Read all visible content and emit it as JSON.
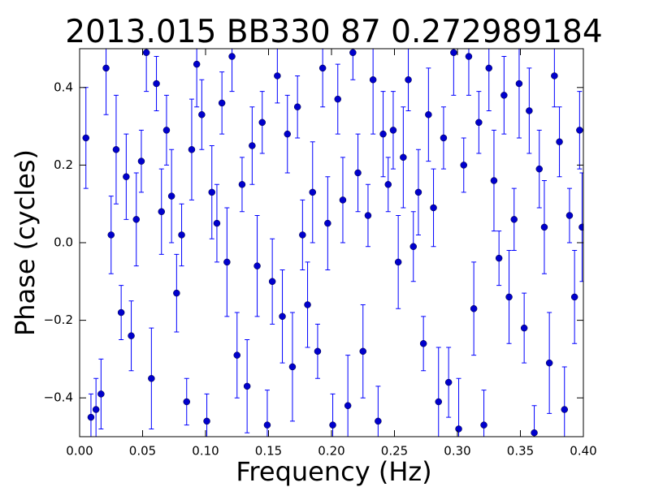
{
  "chart_data": {
    "type": "errorbar-scatter",
    "title": "2013.015  BB330   87   0.272989184",
    "xlabel": "Frequency (Hz)",
    "ylabel": "Phase (cycles)",
    "xlim": [
      0,
      0.4
    ],
    "ylim": [
      -0.5,
      0.5
    ],
    "xticks": [
      {
        "value": 0,
        "label": "0.00"
      },
      {
        "value": 0.05,
        "label": "0.05"
      },
      {
        "value": 0.1,
        "label": "0.10"
      },
      {
        "value": 0.15,
        "label": "0.15"
      },
      {
        "value": 0.2,
        "label": "0.20"
      },
      {
        "value": 0.25,
        "label": "0.25"
      },
      {
        "value": 0.3,
        "label": "0.30"
      },
      {
        "value": 0.35,
        "label": "0.35"
      },
      {
        "value": 0.4,
        "label": "0.40"
      }
    ],
    "yticks": [
      {
        "value": -0.4,
        "label": "−0.4"
      },
      {
        "value": -0.2,
        "label": "−0.2"
      },
      {
        "value": 0,
        "label": "0.0"
      },
      0.2,
      0.4
    ],
    "series": [
      {
        "color": "#0000cc",
        "error_color": "#0000ff",
        "x": [
          0.005,
          0.009,
          0.013,
          0.017,
          0.021,
          0.025,
          0.029,
          0.033,
          0.037,
          0.041,
          0.045,
          0.049,
          0.053,
          0.057,
          0.061,
          0.065,
          0.069,
          0.073,
          0.077,
          0.081,
          0.085,
          0.089,
          0.093,
          0.097,
          0.101,
          0.105,
          0.109,
          0.113,
          0.117,
          0.121,
          0.125,
          0.129,
          0.133,
          0.137,
          0.141,
          0.145,
          0.149,
          0.153,
          0.157,
          0.161,
          0.165,
          0.169,
          0.173,
          0.177,
          0.181,
          0.185,
          0.189,
          0.193,
          0.197,
          0.201,
          0.205,
          0.209,
          0.213,
          0.217,
          0.221,
          0.225,
          0.229,
          0.233,
          0.237,
          0.241,
          0.245,
          0.249,
          0.253,
          0.257,
          0.261,
          0.265,
          0.269,
          0.273,
          0.277,
          0.281,
          0.285,
          0.289,
          0.293,
          0.297,
          0.301,
          0.305,
          0.309,
          0.313,
          0.317,
          0.321,
          0.325,
          0.329,
          0.333,
          0.337,
          0.341,
          0.345,
          0.349,
          0.353,
          0.357,
          0.361,
          0.365,
          0.369,
          0.373,
          0.377,
          0.381,
          0.385,
          0.389,
          0.393,
          0.397,
          0.399
        ],
        "values": [
          0.27,
          -0.45,
          -0.43,
          -0.39,
          0.45,
          0.02,
          0.24,
          -0.18,
          0.17,
          -0.24,
          0.06,
          0.21,
          0.49,
          -0.35,
          0.41,
          0.08,
          0.29,
          0.12,
          -0.13,
          0.02,
          -0.41,
          0.24,
          0.46,
          0.33,
          -0.46,
          0.13,
          0.05,
          0.36,
          -0.05,
          0.48,
          -0.29,
          0.15,
          -0.37,
          0.25,
          -0.06,
          0.31,
          -0.47,
          -0.1,
          0.43,
          -0.19,
          0.28,
          -0.32,
          0.35,
          0.02,
          -0.16,
          0.13,
          -0.28,
          0.45,
          0.05,
          -0.47,
          0.37,
          0.11,
          -0.42,
          0.49,
          0.18,
          -0.28,
          0.07,
          0.42,
          -0.46,
          0.28,
          0.15,
          0.29,
          -0.05,
          0.22,
          0.42,
          -0.01,
          0.13,
          -0.26,
          0.33,
          0.09,
          -0.41,
          0.27,
          -0.36,
          0.49,
          -0.48,
          0.2,
          0.48,
          -0.17,
          0.31,
          -0.47,
          0.45,
          0.16,
          -0.04,
          0.38,
          -0.14,
          0.06,
          0.41,
          -0.22,
          0.34,
          -0.49,
          0.19,
          0.04,
          -0.31,
          0.43,
          0.26,
          -0.43,
          0.07,
          -0.14,
          0.29,
          0.04
        ],
        "errors": [
          0.13,
          0.06,
          0.08,
          0.09,
          0.12,
          0.1,
          0.14,
          0.07,
          0.11,
          0.09,
          0.12,
          0.08,
          0.1,
          0.13,
          0.07,
          0.11,
          0.09,
          0.12,
          0.1,
          0.08,
          0.06,
          0.13,
          0.11,
          0.09,
          0.07,
          0.12,
          0.1,
          0.08,
          0.14,
          0.09,
          0.11,
          0.07,
          0.12,
          0.1,
          0.13,
          0.08,
          0.09,
          0.11,
          0.07,
          0.12,
          0.1,
          0.14,
          0.08,
          0.09,
          0.11,
          0.13,
          0.07,
          0.1,
          0.12,
          0.08,
          0.09,
          0.11,
          0.13,
          0.07,
          0.1,
          0.12,
          0.08,
          0.14,
          0.09,
          0.11,
          0.07,
          0.1,
          0.12,
          0.13,
          0.08,
          0.09,
          0.11,
          0.07,
          0.12,
          0.1,
          0.14,
          0.08,
          0.09,
          0.11,
          0.13,
          0.07,
          0.1,
          0.12,
          0.08,
          0.09,
          0.11,
          0.13,
          0.07,
          0.1,
          0.12,
          0.08,
          0.14,
          0.09,
          0.11,
          0.07,
          0.1,
          0.12,
          0.13,
          0.08,
          0.09,
          0.11,
          0.07,
          0.12,
          0.1,
          0.14
        ]
      }
    ]
  }
}
